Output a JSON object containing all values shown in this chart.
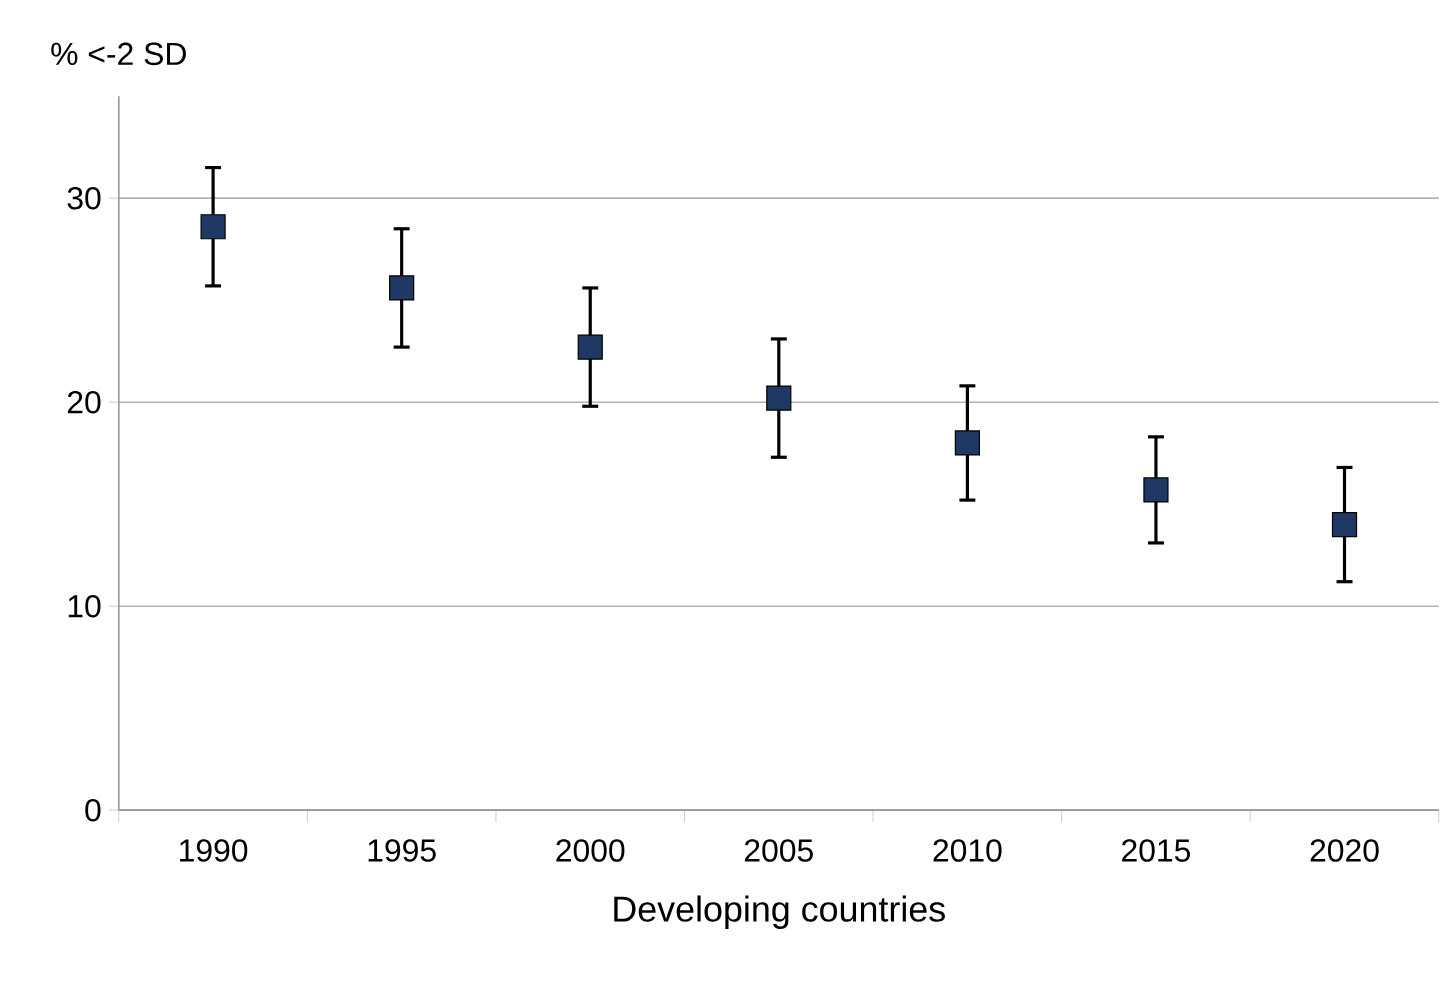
{
  "chart_data": {
    "type": "scatter",
    "xlabel": "Developing countries",
    "ylabel": "% <-2 SD",
    "categories": [
      "1990",
      "1995",
      "2000",
      "2005",
      "2010",
      "2015",
      "2020"
    ],
    "values": [
      28.6,
      25.6,
      22.7,
      20.2,
      18.0,
      15.7,
      14.0
    ],
    "errors": [
      2.9,
      2.9,
      2.9,
      2.9,
      2.8,
      2.6,
      2.8
    ],
    "color": "#1f3864",
    "marker": "square",
    "ylim": [
      0,
      35
    ],
    "yticks": [
      0,
      10,
      20,
      30
    ],
    "grid": "y"
  }
}
